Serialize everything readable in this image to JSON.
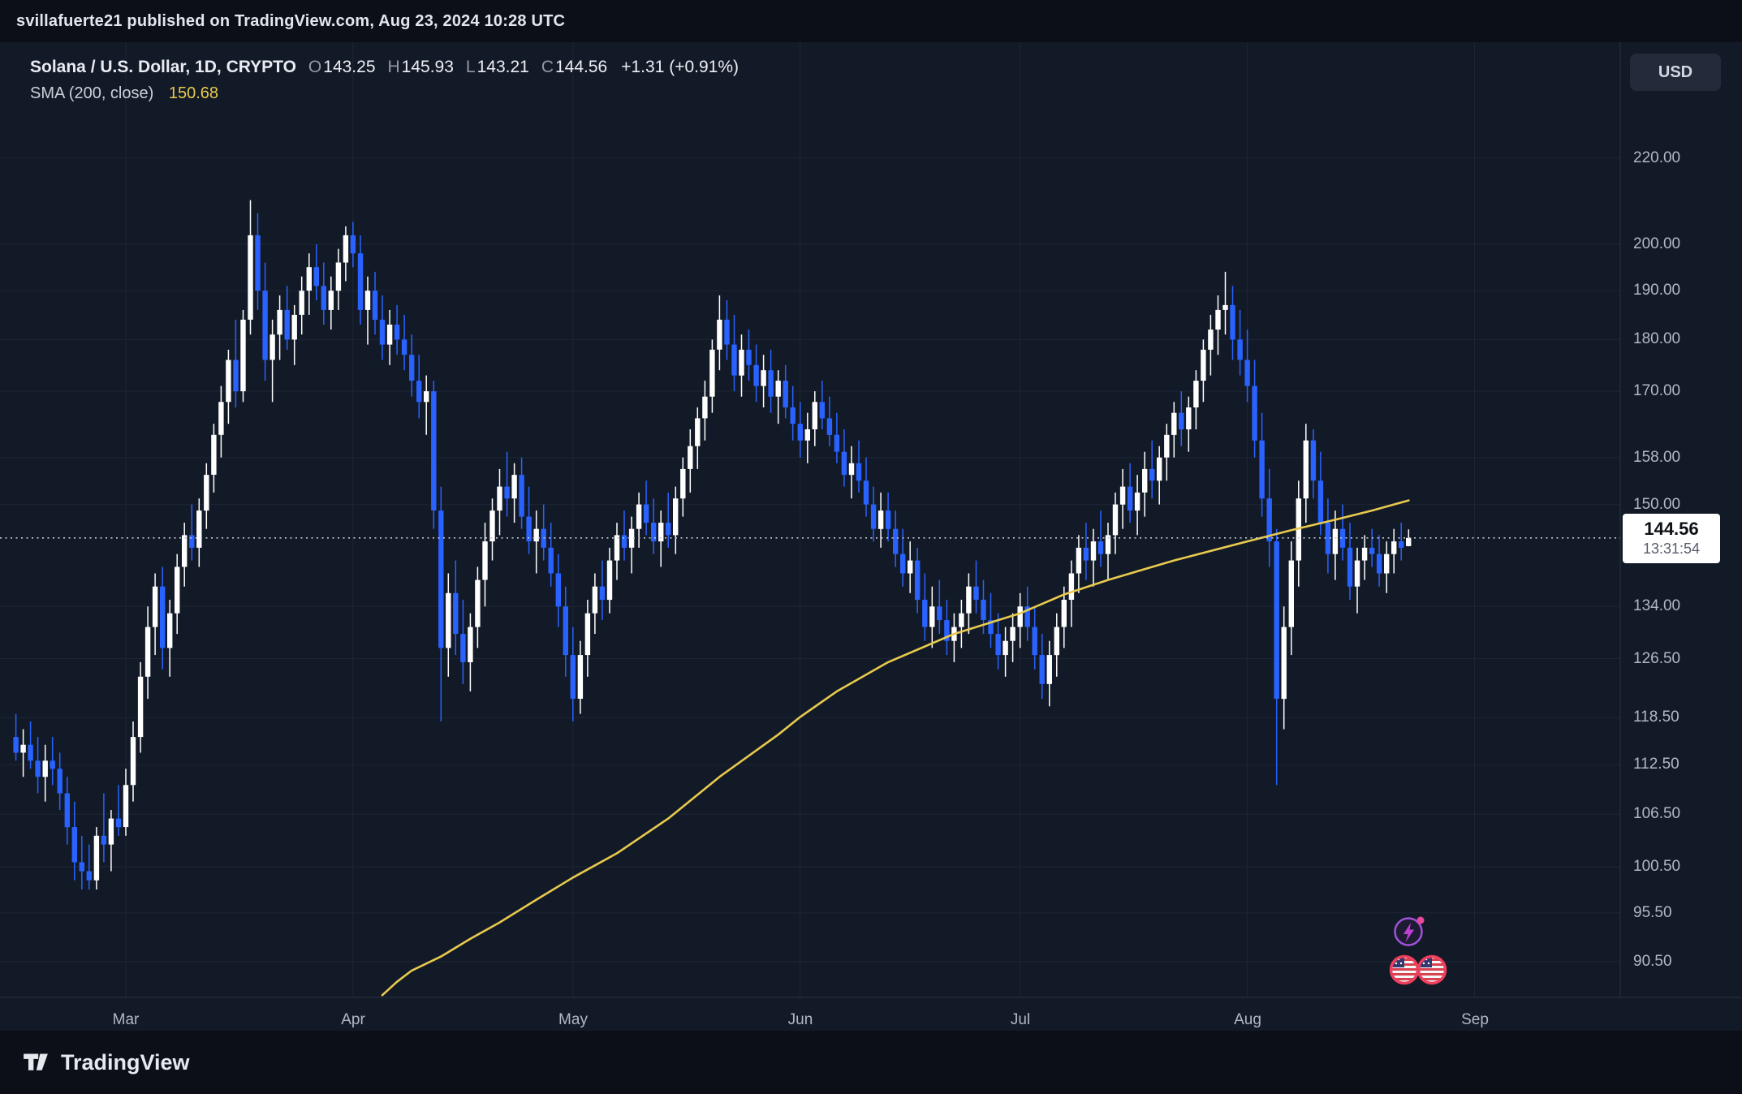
{
  "attribution": {
    "text": "svillafuerte21 published on TradingView.com, Aug 23, 2024 10:28 UTC"
  },
  "legend": {
    "symbol": "Solana / U.S. Dollar, 1D, CRYPTO",
    "ohlc": {
      "o_label": "O",
      "o": "143.25",
      "h_label": "H",
      "h": "145.93",
      "l_label": "L",
      "l": "143.21",
      "c_label": "C",
      "c": "144.56",
      "change": "+1.31 (+0.91%)"
    },
    "sma_label": "SMA (200, close)",
    "sma_value": "150.68"
  },
  "price_axis": {
    "currency_button": "USD",
    "last_price": "144.56",
    "countdown": "13:31:54"
  },
  "footer": {
    "brand": "TradingView"
  },
  "colors": {
    "chart_bg": "#131a27",
    "panel_bg": "#0c0f17",
    "grid": "#1d2536",
    "axis_border": "#2a3143",
    "text_muted": "#b2b7c3",
    "up": "#ffffff",
    "down": "#2962ff",
    "sma": "#e8ca4e",
    "last_price_line": "#c2c6d0",
    "tag_bg": "#ffffff",
    "tag_text": "#0c0f15",
    "countdown_text": "#575d6a",
    "bolt_purple": "#c13fd4",
    "dot_pink": "#e8489c",
    "flag_ring": "#ef3e5e"
  },
  "chart_data": {
    "type": "candlestick",
    "title": "Solana / U.S. Dollar",
    "interval": "1D",
    "exchange": "CRYPTO",
    "scale": "log",
    "start_date": "2024-02-15",
    "last_price": 144.56,
    "sma_last": 150.68,
    "y_ticks": [
      220,
      200,
      190,
      180,
      170,
      158,
      150,
      134,
      126.5,
      118.5,
      112.5,
      106.5,
      100.5,
      95.5,
      90.5
    ],
    "months": [
      {
        "label": "Mar",
        "day": 15
      },
      {
        "label": "Apr",
        "day": 46
      },
      {
        "label": "May",
        "day": 76
      },
      {
        "label": "Jun",
        "day": 107
      },
      {
        "label": "Jul",
        "day": 137
      },
      {
        "label": "Aug",
        "day": 168
      },
      {
        "label": "Sep",
        "day": 199
      }
    ],
    "sma200": [
      [
        50,
        87.2
      ],
      [
        52,
        88.5
      ],
      [
        54,
        89.6
      ],
      [
        58,
        91
      ],
      [
        62,
        92.8
      ],
      [
        66,
        94.5
      ],
      [
        71,
        96.9
      ],
      [
        76,
        99.3
      ],
      [
        82,
        102
      ],
      [
        89,
        106
      ],
      [
        96,
        111
      ],
      [
        104,
        116.3
      ],
      [
        107,
        118.6
      ],
      [
        112,
        122
      ],
      [
        119,
        126
      ],
      [
        128,
        130
      ],
      [
        137,
        133
      ],
      [
        143,
        135.8
      ],
      [
        149,
        138
      ],
      [
        158,
        141
      ],
      [
        168,
        144
      ],
      [
        174,
        145.8
      ],
      [
        180,
        147.5
      ],
      [
        185,
        149
      ],
      [
        190,
        150.68
      ]
    ],
    "candles": [
      [
        116,
        119,
        113,
        114
      ],
      [
        114,
        117,
        111,
        115
      ],
      [
        115,
        118,
        112,
        113
      ],
      [
        113,
        116,
        109,
        111
      ],
      [
        111,
        115,
        108,
        113
      ],
      [
        113,
        116,
        110,
        112
      ],
      [
        112,
        114,
        107,
        109
      ],
      [
        109,
        111,
        103,
        105
      ],
      [
        105,
        108,
        99,
        101
      ],
      [
        101,
        104,
        98,
        100
      ],
      [
        100,
        103,
        98,
        99
      ],
      [
        99,
        105,
        98,
        104
      ],
      [
        104,
        109,
        101,
        103
      ],
      [
        103,
        107,
        100,
        106
      ],
      [
        106,
        110,
        104,
        105
      ],
      [
        105,
        112,
        104,
        110
      ],
      [
        110,
        118,
        108,
        116
      ],
      [
        116,
        126,
        114,
        124
      ],
      [
        124,
        134,
        121,
        131
      ],
      [
        131,
        139,
        127,
        137
      ],
      [
        137,
        140,
        125,
        128
      ],
      [
        128,
        135,
        124,
        133
      ],
      [
        133,
        142,
        130,
        140
      ],
      [
        140,
        147,
        137,
        145
      ],
      [
        145,
        150,
        141,
        143
      ],
      [
        143,
        151,
        140,
        149
      ],
      [
        149,
        157,
        146,
        155
      ],
      [
        155,
        164,
        152,
        162
      ],
      [
        162,
        171,
        158,
        168
      ],
      [
        168,
        178,
        164,
        176
      ],
      [
        176,
        184,
        167,
        170
      ],
      [
        170,
        186,
        168,
        184
      ],
      [
        184,
        210,
        181,
        202
      ],
      [
        202,
        207,
        186,
        190
      ],
      [
        190,
        196,
        172,
        176
      ],
      [
        176,
        184,
        168,
        181
      ],
      [
        181,
        189,
        176,
        186
      ],
      [
        186,
        191,
        178,
        180
      ],
      [
        180,
        187,
        175,
        185
      ],
      [
        185,
        193,
        181,
        190
      ],
      [
        190,
        198,
        185,
        195
      ],
      [
        195,
        200,
        188,
        191
      ],
      [
        191,
        196,
        183,
        186
      ],
      [
        186,
        193,
        182,
        190
      ],
      [
        190,
        199,
        186,
        196
      ],
      [
        196,
        204,
        192,
        202
      ],
      [
        202,
        205,
        195,
        198
      ],
      [
        198,
        202,
        183,
        186
      ],
      [
        186,
        193,
        179,
        190
      ],
      [
        190,
        194,
        181,
        184
      ],
      [
        184,
        189,
        176,
        179
      ],
      [
        179,
        186,
        175,
        183
      ],
      [
        183,
        187,
        177,
        180
      ],
      [
        180,
        185,
        174,
        177
      ],
      [
        177,
        181,
        169,
        172
      ],
      [
        172,
        177,
        165,
        168
      ],
      [
        168,
        173,
        162,
        170
      ],
      [
        170,
        172,
        146,
        149
      ],
      [
        149,
        153,
        118,
        128
      ],
      [
        128,
        139,
        124,
        136
      ],
      [
        136,
        141,
        127,
        130
      ],
      [
        130,
        135,
        123,
        126
      ],
      [
        126,
        133,
        122,
        131
      ],
      [
        131,
        140,
        128,
        138
      ],
      [
        138,
        147,
        134,
        144
      ],
      [
        144,
        151,
        141,
        149
      ],
      [
        149,
        156,
        145,
        153
      ],
      [
        153,
        159,
        148,
        151
      ],
      [
        151,
        157,
        147,
        155
      ],
      [
        155,
        158,
        146,
        148
      ],
      [
        148,
        153,
        142,
        144
      ],
      [
        144,
        149,
        139,
        146
      ],
      [
        146,
        150,
        141,
        143
      ],
      [
        143,
        147,
        137,
        139
      ],
      [
        139,
        142,
        131,
        134
      ],
      [
        134,
        137,
        124,
        127
      ],
      [
        127,
        131,
        118,
        121
      ],
      [
        121,
        129,
        119,
        127
      ],
      [
        127,
        135,
        124,
        133
      ],
      [
        133,
        139,
        130,
        137
      ],
      [
        137,
        141,
        132,
        135
      ],
      [
        135,
        143,
        133,
        141
      ],
      [
        141,
        147,
        138,
        145
      ],
      [
        145,
        149,
        141,
        143
      ],
      [
        143,
        148,
        139,
        146
      ],
      [
        146,
        152,
        143,
        150
      ],
      [
        150,
        154,
        145,
        147
      ],
      [
        147,
        151,
        142,
        144
      ],
      [
        144,
        149,
        140,
        147
      ],
      [
        147,
        152,
        143,
        145
      ],
      [
        145,
        153,
        142,
        151
      ],
      [
        151,
        158,
        148,
        156
      ],
      [
        156,
        163,
        152,
        160
      ],
      [
        160,
        167,
        156,
        165
      ],
      [
        165,
        172,
        161,
        169
      ],
      [
        169,
        180,
        166,
        178
      ],
      [
        178,
        189,
        174,
        184
      ],
      [
        184,
        188,
        176,
        179
      ],
      [
        179,
        185,
        170,
        173
      ],
      [
        173,
        181,
        169,
        178
      ],
      [
        178,
        182,
        172,
        175
      ],
      [
        175,
        179,
        168,
        171
      ],
      [
        171,
        177,
        167,
        174
      ],
      [
        174,
        178,
        166,
        169
      ],
      [
        169,
        174,
        164,
        172
      ],
      [
        172,
        175,
        165,
        167
      ],
      [
        167,
        171,
        161,
        164
      ],
      [
        164,
        168,
        158,
        161
      ],
      [
        161,
        166,
        157,
        163
      ],
      [
        163,
        170,
        160,
        168
      ],
      [
        168,
        172,
        163,
        165
      ],
      [
        165,
        169,
        160,
        162
      ],
      [
        162,
        166,
        157,
        159
      ],
      [
        159,
        163,
        153,
        155
      ],
      [
        155,
        160,
        151,
        157
      ],
      [
        157,
        161,
        152,
        154
      ],
      [
        154,
        158,
        148,
        150
      ],
      [
        150,
        153,
        144,
        146
      ],
      [
        146,
        152,
        143,
        149
      ],
      [
        149,
        152,
        144,
        146
      ],
      [
        146,
        149,
        140,
        142
      ],
      [
        142,
        146,
        137,
        139
      ],
      [
        139,
        144,
        136,
        141
      ],
      [
        141,
        143,
        133,
        135
      ],
      [
        135,
        139,
        129,
        131
      ],
      [
        131,
        137,
        128,
        134
      ],
      [
        134,
        138,
        130,
        132
      ],
      [
        132,
        135,
        127,
        129
      ],
      [
        129,
        133,
        126,
        131
      ],
      [
        131,
        135,
        128,
        133
      ],
      [
        133,
        139,
        130,
        137
      ],
      [
        137,
        141,
        133,
        135
      ],
      [
        135,
        138,
        130,
        132
      ],
      [
        132,
        136,
        128,
        130
      ],
      [
        130,
        133,
        125,
        127
      ],
      [
        127,
        131,
        124,
        129
      ],
      [
        129,
        133,
        126,
        131
      ],
      [
        131,
        136,
        128,
        134
      ],
      [
        134,
        137,
        129,
        131
      ],
      [
        131,
        134,
        125,
        127
      ],
      [
        127,
        130,
        121,
        123
      ],
      [
        123,
        129,
        120,
        127
      ],
      [
        127,
        133,
        124,
        131
      ],
      [
        131,
        137,
        128,
        135
      ],
      [
        135,
        141,
        131,
        139
      ],
      [
        139,
        145,
        136,
        143
      ],
      [
        143,
        147,
        138,
        141
      ],
      [
        141,
        146,
        137,
        144
      ],
      [
        144,
        149,
        140,
        142
      ],
      [
        142,
        147,
        138,
        145
      ],
      [
        145,
        152,
        142,
        150
      ],
      [
        150,
        156,
        146,
        153
      ],
      [
        153,
        157,
        147,
        149
      ],
      [
        149,
        155,
        145,
        152
      ],
      [
        152,
        159,
        148,
        156
      ],
      [
        156,
        161,
        151,
        154
      ],
      [
        154,
        160,
        150,
        158
      ],
      [
        158,
        164,
        154,
        162
      ],
      [
        162,
        168,
        158,
        166
      ],
      [
        166,
        170,
        160,
        163
      ],
      [
        163,
        169,
        159,
        167
      ],
      [
        167,
        174,
        163,
        172
      ],
      [
        172,
        180,
        168,
        178
      ],
      [
        178,
        185,
        173,
        182
      ],
      [
        182,
        189,
        177,
        186
      ],
      [
        186,
        194,
        181,
        187
      ],
      [
        187,
        191,
        176,
        180
      ],
      [
        180,
        186,
        173,
        176
      ],
      [
        176,
        182,
        168,
        171
      ],
      [
        171,
        176,
        158,
        161
      ],
      [
        161,
        166,
        148,
        151
      ],
      [
        151,
        156,
        140,
        144
      ],
      [
        144,
        146,
        110,
        121
      ],
      [
        121,
        134,
        117,
        131
      ],
      [
        131,
        144,
        127,
        141
      ],
      [
        141,
        154,
        137,
        151
      ],
      [
        151,
        164,
        147,
        161
      ],
      [
        161,
        163,
        151,
        154
      ],
      [
        154,
        159,
        145,
        147
      ],
      [
        147,
        151,
        139,
        142
      ],
      [
        142,
        149,
        138,
        146
      ],
      [
        146,
        150,
        141,
        143
      ],
      [
        143,
        147,
        135,
        137
      ],
      [
        137,
        143,
        133,
        141
      ],
      [
        141,
        145,
        138,
        143
      ],
      [
        143,
        146,
        140,
        142
      ],
      [
        142,
        145,
        137,
        139
      ],
      [
        139,
        144,
        136,
        142
      ],
      [
        142,
        146,
        139,
        144
      ],
      [
        144,
        147,
        141,
        143
      ],
      [
        143.25,
        145.93,
        143.21,
        144.56
      ]
    ]
  }
}
